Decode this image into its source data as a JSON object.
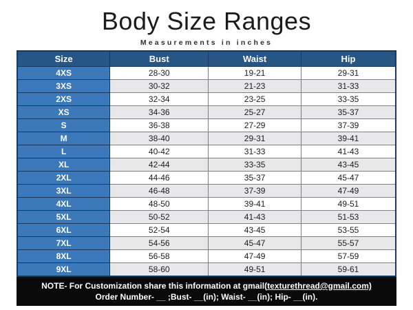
{
  "page": {
    "title": "Body Size Ranges",
    "subtitle": "Measurements in inches"
  },
  "table": {
    "headers": [
      "Size",
      "Bust",
      "Waist",
      "Hip"
    ],
    "rows": [
      {
        "size": "4XS",
        "bust": "28-30",
        "waist": "19-21",
        "hip": "29-31"
      },
      {
        "size": "3XS",
        "bust": "30-32",
        "waist": "21-23",
        "hip": "31-33"
      },
      {
        "size": "2XS",
        "bust": "32-34",
        "waist": "23-25",
        "hip": "33-35"
      },
      {
        "size": "XS",
        "bust": "34-36",
        "waist": "25-27",
        "hip": "35-37"
      },
      {
        "size": "S",
        "bust": "36-38",
        "waist": "27-29",
        "hip": "37-39"
      },
      {
        "size": "M",
        "bust": "38-40",
        "waist": "29-31",
        "hip": "39-41"
      },
      {
        "size": "L",
        "bust": "40-42",
        "waist": "31-33",
        "hip": "41-43"
      },
      {
        "size": "XL",
        "bust": "42-44",
        "waist": "33-35",
        "hip": "43-45"
      },
      {
        "size": "2XL",
        "bust": "44-46",
        "waist": "35-37",
        "hip": "45-47"
      },
      {
        "size": "3XL",
        "bust": "46-48",
        "waist": "37-39",
        "hip": "47-49"
      },
      {
        "size": "4XL",
        "bust": "48-50",
        "waist": "39-41",
        "hip": "49-51"
      },
      {
        "size": "5XL",
        "bust": "50-52",
        "waist": "41-43",
        "hip": "51-53"
      },
      {
        "size": "6XL",
        "bust": "52-54",
        "waist": "43-45",
        "hip": "53-55"
      },
      {
        "size": "7XL",
        "bust": "54-56",
        "waist": "45-47",
        "hip": "55-57"
      },
      {
        "size": "8XL",
        "bust": "56-58",
        "waist": "47-49",
        "hip": "57-59"
      },
      {
        "size": "9XL",
        "bust": "58-60",
        "waist": "49-51",
        "hip": "59-61"
      }
    ]
  },
  "note": {
    "line1_prefix": "NOTE- For Customization share this information at gmail(",
    "line1_email": "texturethread@gmail.com)",
    "line2": "Order Number- __ ;Bust- __(in); Waist- __(in); Hip- __(in)."
  },
  "colors": {
    "header_bg": "#275685",
    "size_col_bg": "#3B79BB",
    "row_alt_bg": "#E8E7E9",
    "table_border": "#17375E",
    "note_bg": "#0A0A0A"
  }
}
